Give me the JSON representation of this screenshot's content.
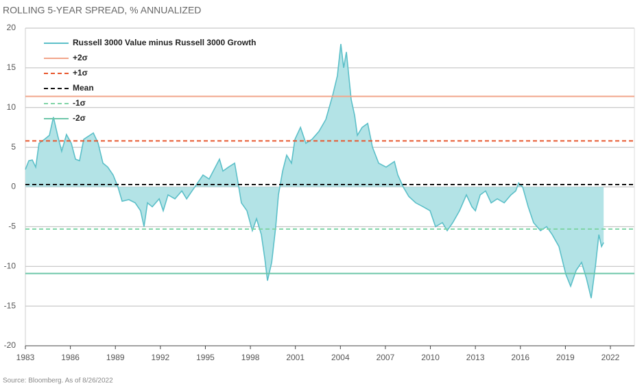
{
  "chart_data": {
    "type": "area-line",
    "title": "ROLLING 5-YEAR SPREAD, % ANNUALIZED",
    "source": "Source: Bloomberg. As of 8/26/2022",
    "xlim": [
      1983,
      2023.6
    ],
    "xticks": [
      1983,
      1986,
      1989,
      1992,
      1995,
      1998,
      2001,
      2004,
      2007,
      2010,
      2013,
      2016,
      2019,
      2022
    ],
    "ylim": [
      -20,
      20
    ],
    "yticks": [
      -20,
      -15,
      -10,
      -5,
      0,
      5,
      10,
      15,
      20
    ],
    "grid": true,
    "x": [
      1983.0,
      1983.23,
      1983.46,
      1983.69,
      1983.91,
      1984.28,
      1984.6,
      1984.87,
      1985.15,
      1985.42,
      1985.74,
      1986.06,
      1986.34,
      1986.61,
      1986.89,
      1987.53,
      1987.85,
      1988.17,
      1988.49,
      1988.85,
      1989.17,
      1989.45,
      1989.9,
      1990.32,
      1990.68,
      1990.91,
      1991.14,
      1991.46,
      1991.92,
      1992.19,
      1992.51,
      1992.97,
      1993.43,
      1993.75,
      1994.11,
      1994.48,
      1994.84,
      1995.25,
      1995.94,
      1996.17,
      1996.54,
      1996.95,
      1997.18,
      1997.4,
      1997.77,
      1998.13,
      1998.41,
      1998.73,
      1998.96,
      1999.14,
      1999.42,
      1999.69,
      1999.87,
      2000.15,
      2000.42,
      2000.74,
      2000.97,
      2001.34,
      2001.7,
      2002.11,
      2002.57,
      2003.03,
      2003.48,
      2003.8,
      2004.03,
      2004.22,
      2004.4,
      2004.72,
      2004.95,
      2005.13,
      2005.45,
      2005.82,
      2006.14,
      2006.55,
      2007.05,
      2007.6,
      2007.83,
      2008.19,
      2008.56,
      2009.02,
      2009.52,
      2009.98,
      2010.34,
      2010.8,
      2011.12,
      2011.49,
      2011.94,
      2012.4,
      2012.77,
      2013.0,
      2013.32,
      2013.68,
      2014.05,
      2014.46,
      2014.92,
      2015.37,
      2015.69,
      2015.88,
      2016.15,
      2016.52,
      2016.88,
      2017.34,
      2017.75,
      2018.12,
      2018.57,
      2019.03,
      2019.35,
      2019.72,
      2020.08,
      2020.4,
      2020.72,
      2021.0,
      2021.23,
      2021.41,
      2021.55
    ],
    "series": [
      {
        "name": "Russell 3000 Value minus Russell 3000 Growth",
        "color": "#5bbfc8",
        "fill": "#b3e3e6",
        "values": [
          2.2,
          3.3,
          3.4,
          2.5,
          5.5,
          6,
          6.5,
          8.8,
          6.5,
          4.5,
          6.6,
          5.5,
          3.5,
          3.3,
          6,
          6.8,
          5.5,
          3,
          2.5,
          1.5,
          0,
          -1.8,
          -1.6,
          -2,
          -3,
          -5,
          -2,
          -2.5,
          -1.5,
          -3,
          -1,
          -1.5,
          -0.5,
          -1.5,
          -0.5,
          0.5,
          1.5,
          1,
          3.5,
          2,
          2.5,
          3,
          0.5,
          -2,
          -3,
          -5.5,
          -4,
          -6,
          -9,
          -11.8,
          -9.5,
          -5,
          -1,
          2,
          4,
          3,
          6,
          7.5,
          5.5,
          6,
          7,
          8.5,
          11.5,
          14,
          18,
          15,
          17,
          11,
          9,
          6.5,
          7.5,
          8,
          5,
          3,
          2.5,
          3.2,
          1.5,
          0,
          -1.2,
          -2,
          -2.5,
          -3,
          -5,
          -4.5,
          -5.5,
          -4.5,
          -3,
          -1,
          -2.5,
          -3,
          -1,
          -0.5,
          -2,
          -1.5,
          -2,
          -1,
          -0.5,
          0.5,
          0,
          -2.5,
          -4.5,
          -5.5,
          -5,
          -6,
          -7.5,
          -11,
          -12.5,
          -10.5,
          -9.5,
          -11.5,
          -14,
          -10,
          -6,
          -7.5,
          -7
        ]
      }
    ],
    "hlines": [
      {
        "name": "+2σ",
        "value": 11.4,
        "color": "#f2a48a",
        "dash": false
      },
      {
        "name": "+1σ",
        "value": 5.8,
        "color": "#e8552b",
        "dash": true
      },
      {
        "name": "Mean",
        "value": 0.3,
        "color": "#111111",
        "dash": true
      },
      {
        "name": "-1σ",
        "value": -5.3,
        "color": "#7fd4a6",
        "dash": true
      },
      {
        "name": "-2σ",
        "value": -10.9,
        "color": "#6cc6a9",
        "dash": false
      }
    ]
  }
}
